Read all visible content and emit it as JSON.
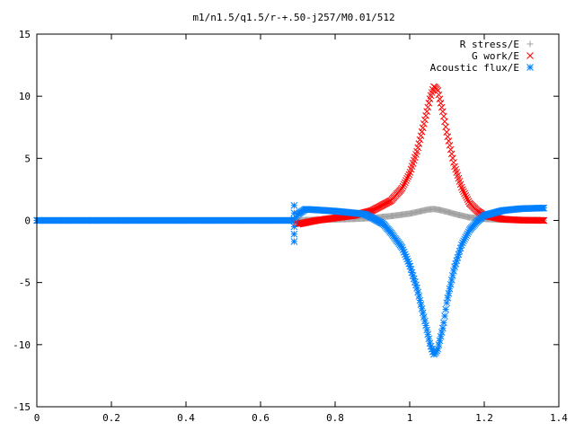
{
  "chart_data": {
    "type": "scatter",
    "title": "m1/n1.5/q1.5/r-+.50-j257/M0.01/512",
    "xlabel": "",
    "ylabel": "",
    "xlim": [
      0,
      1.4
    ],
    "ylim": [
      -15,
      15
    ],
    "xticks": [
      "0",
      "0.2",
      "0.4",
      "0.6",
      "0.8",
      "1",
      "1.2",
      "1.4"
    ],
    "yticks": [
      "15",
      "10",
      "5",
      "0",
      "-5",
      "-10",
      "-15"
    ],
    "grid": false,
    "legend_position": "top-right",
    "x_end": 1.36,
    "step": 0.00266,
    "series": [
      {
        "name": "R stress/E",
        "color": "#a0a0a0",
        "marker": "plus",
        "start_x": 0.695,
        "x": [
          0,
          0.69,
          0.7,
          0.75,
          0.8,
          0.85,
          0.9,
          0.95,
          1.0,
          1.03,
          1.05,
          1.065,
          1.08,
          1.1,
          1.13,
          1.16,
          1.2,
          1.25,
          1.3,
          1.36
        ],
        "y": [
          0,
          0,
          0.02,
          0.05,
          0.08,
          0.12,
          0.2,
          0.35,
          0.55,
          0.75,
          0.88,
          0.92,
          0.85,
          0.7,
          0.45,
          0.25,
          0.12,
          0.06,
          0.03,
          0.02
        ]
      },
      {
        "name": "G work/E",
        "color": "#ff0000",
        "marker": "cross",
        "start_x": 0.695,
        "x": [
          0,
          0.69,
          0.7,
          0.75,
          0.8,
          0.85,
          0.9,
          0.95,
          0.98,
          1.0,
          1.02,
          1.04,
          1.055,
          1.065,
          1.075,
          1.09,
          1.1,
          1.12,
          1.14,
          1.16,
          1.18,
          1.2,
          1.25,
          1.3,
          1.36
        ],
        "y": [
          0,
          0,
          -0.3,
          0.0,
          0.2,
          0.4,
          0.8,
          1.6,
          2.6,
          3.8,
          5.6,
          8.0,
          9.9,
          10.8,
          10.5,
          8.6,
          7.0,
          4.4,
          2.6,
          1.4,
          0.8,
          0.4,
          0.1,
          0.02,
          0.0
        ]
      },
      {
        "name": "Acoustic flux/E",
        "color": "#0080ff",
        "marker": "star",
        "start_x": 0.695,
        "x": [
          0,
          0.69,
          0.7,
          0.72,
          0.75,
          0.8,
          0.85,
          0.88,
          0.9,
          0.93,
          0.95,
          0.98,
          1.0,
          1.02,
          1.04,
          1.055,
          1.065,
          1.075,
          1.09,
          1.1,
          1.12,
          1.14,
          1.16,
          1.18,
          1.2,
          1.25,
          1.3,
          1.36
        ],
        "y": [
          0,
          0,
          0.5,
          0.9,
          0.85,
          0.75,
          0.6,
          0.5,
          0.2,
          -0.3,
          -1.0,
          -2.2,
          -3.6,
          -5.5,
          -8.0,
          -10.0,
          -10.8,
          -10.4,
          -8.5,
          -6.5,
          -3.8,
          -1.9,
          -0.8,
          -0.1,
          0.4,
          0.8,
          0.95,
          1.0
        ]
      }
    ],
    "transient": {
      "x": 0.69,
      "series_index": 2,
      "y": [
        1.2,
        0.6,
        0.1,
        -0.5,
        -1.1,
        -1.7
      ]
    }
  }
}
